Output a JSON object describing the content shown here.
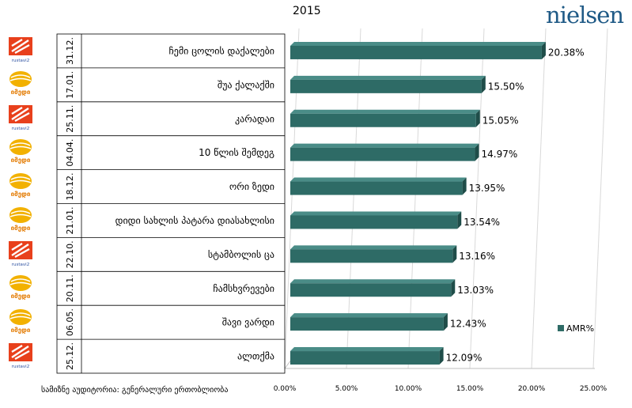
{
  "brand": "nielsen",
  "footnote": "სამიზნე აუდიტორია: გენერალური ერთობლიობა",
  "channel_logos": {
    "rustavi2": "rustavi2-logo",
    "imedi": "imedi-logo",
    "rustavi2_caption": "rustavi2",
    "imedi_caption": "იმედი"
  },
  "colors": {
    "bar": "#2e6b66",
    "bar_top": "#4a8c87",
    "bar_side": "#1f4d49",
    "rustavi2": "#e8401c",
    "imedi": "#f2b100"
  },
  "chart_data": {
    "type": "bar",
    "orientation": "horizontal",
    "title": "2015",
    "categories": [
      "ჩემი ცოლის დაქალები",
      "შუა ქალაქში",
      "კარადაი",
      "10 წლის შემდეგ",
      "ორი ზედი",
      "დიდი სახლის  პატარა  დიასახლისი",
      "სტამბოლის ცა",
      "ჩამსხვრევები",
      "შავი ვარდი",
      "ალთქმა"
    ],
    "dates": [
      "31.12.",
      "17.01.",
      "25.11.",
      "04.04.",
      "18.12.",
      "21.01.",
      "22.10.",
      "20.11.",
      "06.05.",
      "25.12."
    ],
    "channels": [
      "rustavi2",
      "imedi",
      "rustavi2",
      "imedi",
      "imedi",
      "imedi",
      "rustavi2",
      "imedi",
      "imedi",
      "rustavi2"
    ],
    "series": [
      {
        "name": "AMR%",
        "values": [
          20.38,
          15.5,
          15.05,
          14.97,
          13.95,
          13.54,
          13.16,
          13.03,
          12.43,
          12.09
        ]
      }
    ],
    "data_labels": [
      "20.38%",
      "15.50%",
      "15.05%",
      "14.97%",
      "13.95%",
      "13.54%",
      "13.16%",
      "13.03%",
      "12.43%",
      "12.09%"
    ],
    "x_ticks": [
      "0.00%",
      "5.00%",
      "10.00%",
      "15.00%",
      "20.00%",
      "25.00%"
    ],
    "xlim": [
      0,
      25
    ],
    "grid": true,
    "legend_position": "right"
  }
}
